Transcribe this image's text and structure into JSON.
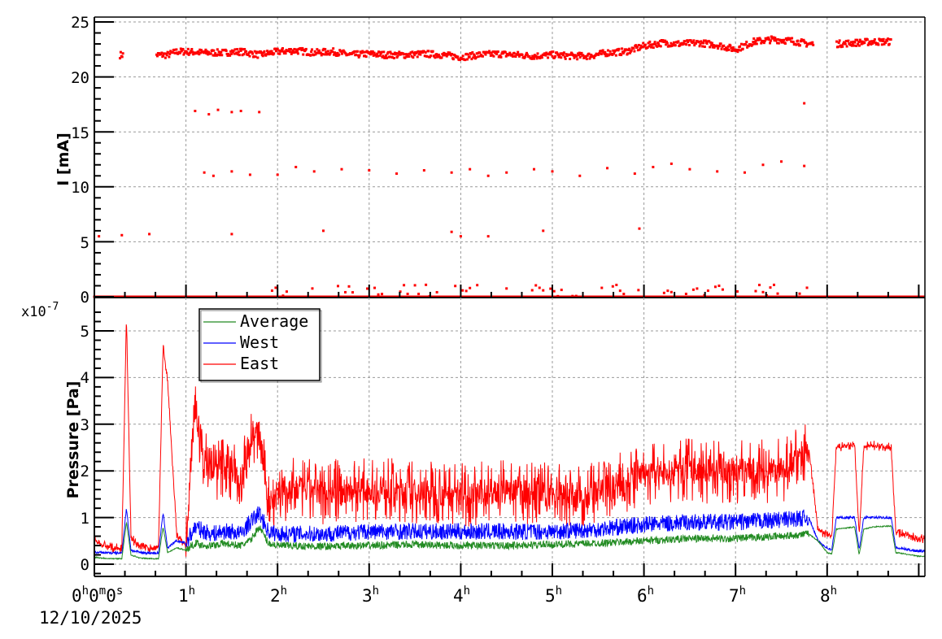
{
  "chart_data": [
    {
      "panel": "top",
      "type": "scatter",
      "title": "",
      "xlabel": "",
      "ylabel": "I [mA]",
      "ylim": [
        0,
        25
      ],
      "yticks": [
        0,
        5,
        10,
        15,
        20,
        25
      ],
      "ytick_labels": [
        "0",
        "5",
        "10",
        "15",
        "20",
        "25"
      ],
      "xlim_hours": [
        0,
        9.07
      ],
      "grid": true,
      "marker_color": "#ff0000",
      "series": [
        {
          "name": "I",
          "description": "Beam current; main band ~22-23.5 mA with scattered lower points near 17, 11-12, 5.5 and 0 mA",
          "x_hours": [
            0.05,
            0.3,
            0.7,
            0.8,
            0.9,
            1.0,
            1.2,
            1.4,
            1.6,
            1.8,
            2.0,
            2.2,
            2.4,
            2.6,
            2.8,
            3.0,
            3.2,
            3.4,
            3.6,
            3.8,
            4.0,
            4.2,
            4.4,
            4.6,
            4.8,
            5.0,
            5.2,
            5.4,
            5.6,
            5.8,
            6.0,
            6.2,
            6.4,
            6.6,
            6.8,
            7.0,
            7.2,
            7.4,
            7.6,
            7.8,
            8.1,
            8.3,
            8.5,
            8.7
          ],
          "values": [
            22.0,
            22.0,
            22.0,
            22.0,
            22.3,
            22.3,
            22.2,
            22.2,
            22.3,
            22.0,
            22.3,
            22.4,
            22.2,
            22.3,
            22.0,
            22.1,
            22.0,
            22.0,
            22.1,
            22.0,
            21.8,
            22.0,
            22.1,
            22.0,
            21.9,
            22.0,
            21.9,
            21.9,
            22.2,
            22.3,
            22.8,
            23.1,
            23.0,
            23.1,
            22.9,
            22.5,
            23.2,
            23.4,
            23.3,
            23.0,
            23.0,
            23.1,
            23.2,
            23.2
          ]
        },
        {
          "name": "I (outliers)",
          "x_hours": [
            0.0,
            0.25,
            0.6,
            1.1,
            1.25,
            1.35,
            1.5,
            1.6,
            1.8,
            1.2,
            1.3,
            1.5,
            1.7,
            2.0,
            2.2,
            2.4,
            2.7,
            3.0,
            3.3,
            3.6,
            3.9,
            4.1,
            4.3,
            4.5,
            4.8,
            5.0,
            5.3,
            5.6,
            5.9,
            6.1,
            6.3,
            6.5,
            6.8,
            7.1,
            7.3,
            7.5,
            7.75,
            7.75,
            0.05,
            0.3,
            0.6,
            1.5,
            2.5,
            3.9,
            4.0,
            4.3,
            4.9,
            5.95
          ],
          "values": [
            0,
            0,
            0,
            16.9,
            16.6,
            17.0,
            16.8,
            16.9,
            16.8,
            11.3,
            11.0,
            11.4,
            11.1,
            11.1,
            11.8,
            11.4,
            11.6,
            11.5,
            11.2,
            11.5,
            11.3,
            11.6,
            11.0,
            11.3,
            11.6,
            11.4,
            11.0,
            11.7,
            11.2,
            11.8,
            12.1,
            11.6,
            11.4,
            11.3,
            12.0,
            12.3,
            11.9,
            17.6,
            5.5,
            5.6,
            5.7,
            5.7,
            6.0,
            5.9,
            5.5,
            5.5,
            6.0,
            6.2
          ]
        },
        {
          "name": "I (near zero)",
          "x_hours": [
            0,
            0.5,
            1,
            1.5,
            2,
            2.5,
            3,
            3.5,
            4,
            4.5,
            5,
            5.5,
            6,
            6.5,
            7,
            7.5,
            8,
            8.5,
            9
          ],
          "values": [
            0,
            0,
            0,
            0,
            0.5,
            0.8,
            1.0,
            0.8,
            0.7,
            0.9,
            0.8,
            0.6,
            1.0,
            0.5,
            0.9,
            0.8,
            0,
            0,
            0
          ]
        }
      ]
    },
    {
      "panel": "bottom",
      "type": "line",
      "title": "",
      "xlabel": "",
      "ylabel": "Pressure [Pa]",
      "y_multiplier": "x10^-7",
      "ylim": [
        -0.25,
        5.6
      ],
      "yticks": [
        0,
        1,
        2,
        3,
        4,
        5
      ],
      "ytick_labels": [
        "0",
        "1",
        "2",
        "3",
        "4",
        "5"
      ],
      "x_tick_labels": [
        "0h0m0s",
        "1h",
        "2h",
        "3h",
        "4h",
        "5h",
        "6h",
        "7h",
        "8h"
      ],
      "x_date_label": "12/10/2025",
      "xlim_hours": [
        0,
        9.07
      ],
      "grid": true,
      "legend": {
        "position": "upper-left",
        "entries": [
          "Average",
          "West",
          "East"
        ]
      },
      "x_hours": [
        0,
        0.1,
        0.2,
        0.3,
        0.35,
        0.4,
        0.5,
        0.6,
        0.7,
        0.75,
        0.8,
        0.9,
        1.0,
        1.1,
        1.2,
        1.3,
        1.4,
        1.5,
        1.6,
        1.7,
        1.8,
        1.9,
        2.0,
        2.5,
        3.0,
        3.5,
        4.0,
        4.5,
        5.0,
        5.5,
        6.0,
        6.5,
        7.0,
        7.5,
        7.8,
        7.9,
        8.0,
        8.05,
        8.1,
        8.3,
        8.35,
        8.4,
        8.5,
        8.7,
        8.75,
        9.0,
        9.07
      ],
      "series": [
        {
          "name": "Average",
          "color": "#228b22",
          "values": [
            0.15,
            0.13,
            0.12,
            0.12,
            0.9,
            0.2,
            0.13,
            0.12,
            0.12,
            0.8,
            0.25,
            0.35,
            0.3,
            0.45,
            0.4,
            0.4,
            0.45,
            0.42,
            0.4,
            0.5,
            0.8,
            0.45,
            0.4,
            0.38,
            0.4,
            0.42,
            0.4,
            0.4,
            0.42,
            0.45,
            0.5,
            0.55,
            0.55,
            0.6,
            0.65,
            0.5,
            0.25,
            0.22,
            0.75,
            0.8,
            0.2,
            0.75,
            0.8,
            0.82,
            0.25,
            0.17,
            0.17
          ]
        },
        {
          "name": "West",
          "color": "#0000ff",
          "values": [
            0.25,
            0.25,
            0.24,
            0.24,
            1.2,
            0.3,
            0.25,
            0.24,
            0.24,
            1.1,
            0.35,
            0.5,
            0.45,
            0.8,
            0.7,
            0.65,
            0.7,
            0.7,
            0.65,
            0.9,
            1.1,
            0.7,
            0.65,
            0.65,
            0.7,
            0.7,
            0.7,
            0.7,
            0.7,
            0.75,
            0.85,
            0.9,
            0.9,
            0.95,
            1.0,
            0.5,
            0.35,
            0.3,
            1.0,
            1.0,
            0.3,
            1.0,
            1.0,
            1.0,
            0.35,
            0.28,
            0.28
          ]
        },
        {
          "name": "East",
          "color": "#ff0000",
          "values": [
            0.5,
            0.4,
            0.35,
            0.33,
            5.3,
            0.55,
            0.4,
            0.35,
            0.33,
            4.7,
            3.9,
            0.6,
            0.4,
            3.3,
            2.2,
            2.0,
            2.1,
            2.0,
            1.9,
            2.7,
            2.8,
            1.3,
            1.6,
            1.55,
            1.6,
            1.55,
            1.5,
            1.55,
            1.5,
            1.5,
            1.9,
            2.0,
            2.0,
            2.0,
            2.5,
            0.75,
            0.62,
            0.6,
            2.5,
            2.55,
            0.6,
            2.5,
            2.55,
            2.5,
            0.7,
            0.55,
            0.53
          ]
        }
      ]
    }
  ],
  "labels": {
    "top_ylabel": "I [mA]",
    "bottom_ylabel": "Pressure [Pa]",
    "multiplier_base": "x10",
    "multiplier_exp": "-7",
    "date": "12/10/2025",
    "top_yticks": [
      "25",
      "20",
      "15",
      "10",
      "5",
      "0"
    ],
    "bottom_yticks": [
      "5",
      "4",
      "3",
      "2",
      "1",
      "0"
    ],
    "xticks": [
      {
        "main": "1",
        "sup": "h"
      },
      {
        "main": "2",
        "sup": "h"
      },
      {
        "main": "3",
        "sup": "h"
      },
      {
        "main": "4",
        "sup": "h"
      },
      {
        "main": "5",
        "sup": "h"
      },
      {
        "main": "6",
        "sup": "h"
      },
      {
        "main": "7",
        "sup": "h"
      },
      {
        "main": "8",
        "sup": "h"
      }
    ],
    "xtick0": {
      "a": "0",
      "asup": "h",
      "b": "0",
      "bsup": "m",
      "c": "0",
      "csup": "s"
    },
    "legend": [
      "Average",
      "West",
      "East"
    ]
  },
  "colors": {
    "average": "#228b22",
    "west": "#0000ff",
    "east": "#ff0000",
    "current": "#ff0000",
    "grid": "#999999",
    "axis": "#000000"
  }
}
